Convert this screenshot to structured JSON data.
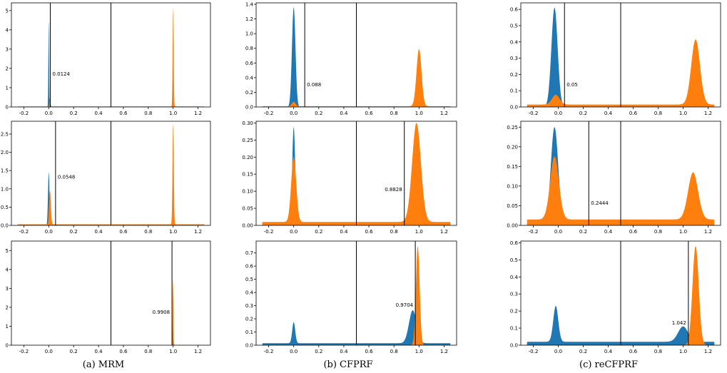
{
  "colors": {
    "series_a": "#1f77b4",
    "series_b": "#ff7f0e",
    "threshold_line": "#000000",
    "axes": "#000000"
  },
  "chart_data": [
    {
      "type": "area",
      "panel": "MRM row 1",
      "xlim": [
        -0.3,
        1.3
      ],
      "ylim": [
        0,
        5.4
      ],
      "xticks": [
        "-0.2",
        "0.0",
        "0.2",
        "0.4",
        "0.6",
        "0.8",
        "1.0",
        "1.2"
      ],
      "yticks": [
        "0",
        "1",
        "2",
        "3",
        "4",
        "5"
      ],
      "series": [
        {
          "color": "#1f77b4",
          "peaks": [
            {
              "x": 0.0,
              "height": 4.45,
              "width": 0.003
            }
          ],
          "floor": 0.0
        },
        {
          "color": "#ff7f0e",
          "peaks": [
            {
              "x": 1.0,
              "height": 5.1,
              "width": 0.004
            },
            {
              "x": 0.01,
              "height": 0.45,
              "width": 0.004
            }
          ],
          "floor": 0.03
        }
      ],
      "vlines": [
        0.0124,
        0.5
      ],
      "annotation": {
        "text": "0.0124",
        "x": 0.0124,
        "y": 0.3
      }
    },
    {
      "type": "area",
      "panel": "CFPRF row 1",
      "xlim": [
        -0.3,
        1.3
      ],
      "ylim": [
        0,
        1.42
      ],
      "xticks": [
        "-0.2",
        "0.0",
        "0.2",
        "0.4",
        "0.6",
        "0.8",
        "1.0",
        "1.2"
      ],
      "yticks": [
        "0.0",
        "0.2",
        "0.4",
        "0.6",
        "0.8",
        "1.0",
        "1.2",
        "1.4"
      ],
      "series": [
        {
          "color": "#1f77b4",
          "peaks": [
            {
              "x": 0.0,
              "height": 1.36,
              "width": 0.014
            }
          ],
          "floor": 0.0
        },
        {
          "color": "#ff7f0e",
          "peaks": [
            {
              "x": 1.0,
              "height": 0.78,
              "width": 0.02
            },
            {
              "x": 0.0,
              "height": 0.06,
              "width": 0.015
            }
          ],
          "floor": 0.01
        }
      ],
      "vlines": [
        0.088,
        0.5
      ],
      "annotation": {
        "text": "0.088",
        "x": 0.088,
        "y": 0.2
      }
    },
    {
      "type": "area",
      "panel": "reCFPRF row 1",
      "xlim": [
        -0.3,
        1.3
      ],
      "ylim": [
        0,
        0.64
      ],
      "xticks": [
        "-0.2",
        "0.0",
        "0.2",
        "0.4",
        "0.6",
        "0.8",
        "1.0",
        "1.2"
      ],
      "yticks": [
        "0.0",
        "0.1",
        "0.2",
        "0.3",
        "0.4",
        "0.5",
        "0.6"
      ],
      "series": [
        {
          "color": "#1f77b4",
          "peaks": [
            {
              "x": -0.03,
              "height": 0.61,
              "width": 0.025
            }
          ],
          "floor": 0.0
        },
        {
          "color": "#ff7f0e",
          "peaks": [
            {
              "x": 1.1,
              "height": 0.4,
              "width": 0.035
            },
            {
              "x": -0.02,
              "height": 0.06,
              "width": 0.03
            }
          ],
          "floor": 0.015
        }
      ],
      "vlines": [
        0.05,
        0.5
      ],
      "annotation": {
        "text": "0.05",
        "x": 0.05,
        "y": 0.2
      }
    },
    {
      "type": "area",
      "panel": "MRM row 2",
      "xlim": [
        -0.3,
        1.3
      ],
      "ylim": [
        0,
        2.85
      ],
      "xticks": [
        "-0.2",
        "0.0",
        "0.2",
        "0.4",
        "0.6",
        "0.8",
        "1.0",
        "1.2"
      ],
      "yticks": [
        "0.0",
        "0.5",
        "1.0",
        "1.5",
        "2.0",
        "2.5"
      ],
      "series": [
        {
          "color": "#1f77b4",
          "peaks": [
            {
              "x": 0.0,
              "height": 1.45,
              "width": 0.006
            }
          ],
          "floor": 0.0
        },
        {
          "color": "#ff7f0e",
          "peaks": [
            {
              "x": 1.0,
              "height": 2.75,
              "width": 0.005
            },
            {
              "x": 0.01,
              "height": 0.92,
              "width": 0.007
            }
          ],
          "floor": 0.03
        }
      ],
      "vlines": [
        0.0548,
        0.5
      ],
      "annotation": {
        "text": "0.0548",
        "x": 0.0548,
        "y": 0.45
      }
    },
    {
      "type": "area",
      "panel": "CFPRF row 2",
      "xlim": [
        -0.3,
        1.3
      ],
      "ylim": [
        0,
        0.305
      ],
      "xticks": [
        "-0.2",
        "0.0",
        "0.2",
        "0.4",
        "0.6",
        "0.8",
        "1.0",
        "1.2"
      ],
      "yticks": [
        "0.00",
        "0.05",
        "0.10",
        "0.15",
        "0.20",
        "0.25",
        "0.30"
      ],
      "series": [
        {
          "color": "#1f77b4",
          "peaks": [
            {
              "x": 0.0,
              "height": 0.28,
              "width": 0.012
            }
          ],
          "floor": 0.008
        },
        {
          "color": "#ff7f0e",
          "peaks": [
            {
              "x": 0.98,
              "height": 0.29,
              "width": 0.035
            },
            {
              "x": 0.0,
              "height": 0.19,
              "width": 0.02
            }
          ],
          "floor": 0.01
        }
      ],
      "vlines": [
        0.5,
        0.8828
      ],
      "annotation": {
        "text": "0.8828",
        "x": 0.8828,
        "y": 0.33
      }
    },
    {
      "type": "area",
      "panel": "reCFPRF row 2",
      "xlim": [
        -0.3,
        1.3
      ],
      "ylim": [
        0,
        0.265
      ],
      "xticks": [
        "-0.2",
        "0.0",
        "0.2",
        "0.4",
        "0.6",
        "0.8",
        "1.0",
        "1.2"
      ],
      "yticks": [
        "0.00",
        "0.05",
        "0.10",
        "0.15",
        "0.20",
        "0.25"
      ],
      "series": [
        {
          "color": "#1f77b4",
          "peaks": [
            {
              "x": -0.03,
              "height": 0.25,
              "width": 0.03
            }
          ],
          "floor": 0.0
        },
        {
          "color": "#ff7f0e",
          "peaks": [
            {
              "x": 1.08,
              "height": 0.12,
              "width": 0.04
            },
            {
              "x": -0.03,
              "height": 0.16,
              "width": 0.035
            }
          ],
          "floor": 0.015
        }
      ],
      "vlines": [
        0.2444,
        0.5
      ],
      "annotation": {
        "text": "0.2444",
        "x": 0.2444,
        "y": 0.2
      }
    },
    {
      "type": "area",
      "panel": "MRM row 3",
      "xlim": [
        -0.3,
        1.3
      ],
      "ylim": [
        0,
        5.5
      ],
      "xticks": [
        "-0.2",
        "0.0",
        "0.2",
        "0.4",
        "0.6",
        "0.8",
        "1.0",
        "1.2"
      ],
      "yticks": [
        "0",
        "1",
        "2",
        "3",
        "4",
        "5"
      ],
      "series": [
        {
          "color": "#1f77b4",
          "peaks": [
            {
              "x": 1.0,
              "height": 0.55,
              "width": 0.004
            }
          ],
          "floor": 0.0
        },
        {
          "color": "#ff7f0e",
          "peaks": [
            {
              "x": 0.999,
              "height": 3.5,
              "width": 0.003
            }
          ],
          "floor": 0.0
        }
      ],
      "vlines": [
        0.5,
        0.9908
      ],
      "annotation": {
        "text": "0.9908",
        "x": 0.9908,
        "y": 0.3
      }
    },
    {
      "type": "area",
      "panel": "CFPRF row 3",
      "xlim": [
        -0.3,
        1.3
      ],
      "ylim": [
        0,
        0.79
      ],
      "xticks": [
        "-0.2",
        "0.0",
        "0.2",
        "0.4",
        "0.6",
        "0.8",
        "1.0",
        "1.2"
      ],
      "yticks": [
        "0.0",
        "0.1",
        "0.2",
        "0.3",
        "0.4",
        "0.5",
        "0.6",
        "0.7"
      ],
      "series": [
        {
          "color": "#1f77b4",
          "peaks": [
            {
              "x": 0.0,
              "height": 0.16,
              "width": 0.012
            },
            {
              "x": 0.95,
              "height": 0.25,
              "width": 0.03
            }
          ],
          "floor": 0.015
        },
        {
          "color": "#ff7f0e",
          "peaks": [
            {
              "x": 0.99,
              "height": 0.75,
              "width": 0.015
            }
          ],
          "floor": 0.0
        }
      ],
      "vlines": [
        0.5,
        0.9704
      ],
      "annotation": {
        "text": "0.9704",
        "x": 0.9704,
        "y": 0.37
      }
    },
    {
      "type": "area",
      "panel": "reCFPRF row 3",
      "xlim": [
        -0.3,
        1.3
      ],
      "ylim": [
        0,
        0.61
      ],
      "xticks": [
        "-0.2",
        "0.0",
        "0.2",
        "0.4",
        "0.6",
        "0.8",
        "1.0",
        "1.2"
      ],
      "yticks": [
        "0.0",
        "0.1",
        "0.2",
        "0.3",
        "0.4",
        "0.5",
        "0.6"
      ],
      "series": [
        {
          "color": "#1f77b4",
          "peaks": [
            {
              "x": -0.02,
              "height": 0.21,
              "width": 0.02
            },
            {
              "x": 1.0,
              "height": 0.09,
              "width": 0.04
            }
          ],
          "floor": 0.02
        },
        {
          "color": "#ff7f0e",
          "peaks": [
            {
              "x": 1.1,
              "height": 0.58,
              "width": 0.025
            }
          ],
          "floor": 0.0
        }
      ],
      "vlines": [
        0.5,
        1.042
      ],
      "annotation": {
        "text": "1.042",
        "x": 1.042,
        "y": 0.2
      }
    }
  ],
  "captions": [
    "(a) MRM",
    "(b) CFPRF",
    "(c) reCFPRF"
  ]
}
